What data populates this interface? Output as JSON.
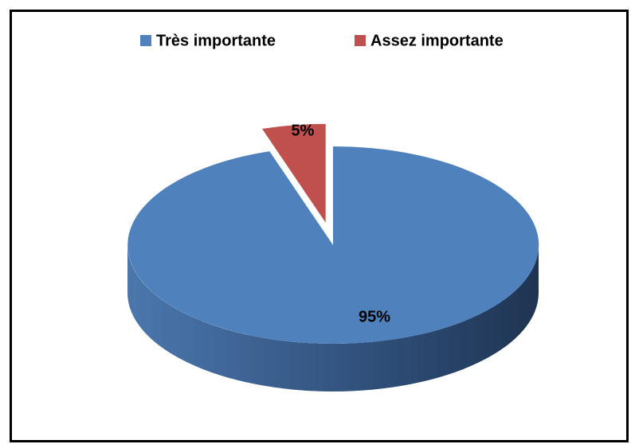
{
  "chart_data": {
    "type": "pie",
    "categories": [
      "Très importante",
      "Assez importante"
    ],
    "values": [
      95,
      5
    ],
    "value_labels": [
      "95%",
      "5%"
    ],
    "colors": [
      "#4f81bd",
      "#c0504d"
    ],
    "legend": "top",
    "explode": [
      0,
      1
    ]
  }
}
